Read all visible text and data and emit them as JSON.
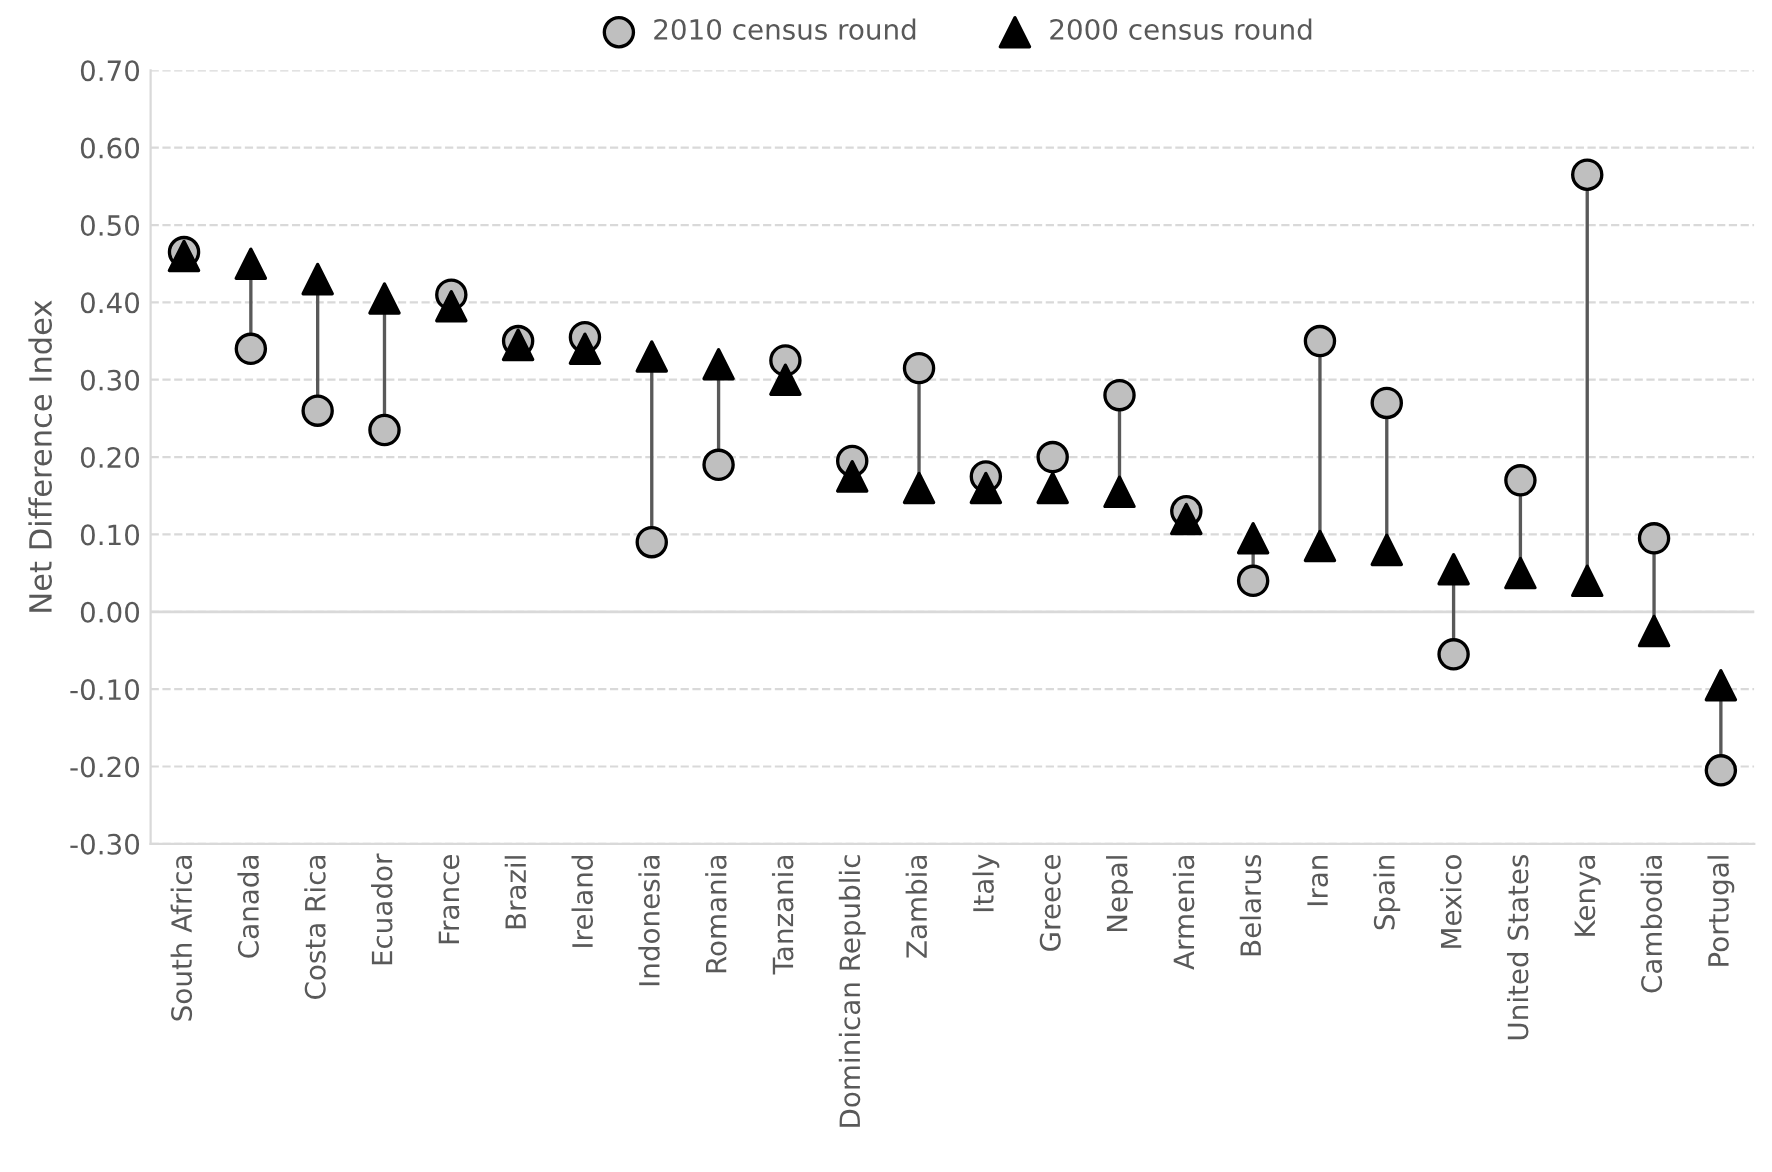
{
  "chart_data": {
    "type": "scatter",
    "ylabel": "Net Difference Index",
    "categories": [
      "South Africa",
      "Canada",
      "Costa Rica",
      "Ecuador",
      "France",
      "Brazil",
      "Ireland",
      "Indonesia",
      "Romania",
      "Tanzania",
      "Dominican Republic",
      "Zambia",
      "Italy",
      "Greece",
      "Nepal",
      "Armenia",
      "Belarus",
      "Iran",
      "Spain",
      "Mexico",
      "United States",
      "Kenya",
      "Cambodia",
      "Portugal"
    ],
    "series": [
      {
        "name": "2010 census round",
        "color": "#bfbfbf",
        "marker": "circle",
        "values": [
          0.465,
          0.34,
          0.26,
          0.235,
          0.41,
          0.35,
          0.355,
          0.09,
          0.19,
          0.325,
          0.195,
          0.315,
          0.175,
          0.2,
          0.28,
          0.13,
          0.04,
          0.35,
          0.27,
          -0.055,
          0.17,
          0.565,
          0.095,
          -0.205
        ]
      },
      {
        "name": "2000 census round",
        "color": "#000000",
        "marker": "triangle",
        "values": [
          0.46,
          0.45,
          0.43,
          0.405,
          0.395,
          0.345,
          0.34,
          0.33,
          0.32,
          0.3,
          0.175,
          0.16,
          0.16,
          0.16,
          0.155,
          0.12,
          0.095,
          0.085,
          0.08,
          0.055,
          0.05,
          0.04,
          -0.025,
          -0.095
        ]
      }
    ],
    "ylim": [
      -0.3,
      0.7
    ],
    "yticks": [
      {
        "value": -0.3,
        "label": "-0.30"
      },
      {
        "value": -0.2,
        "label": "-0.20"
      },
      {
        "value": -0.1,
        "label": "-0.10"
      },
      {
        "value": 0,
        "label": "0.00"
      },
      {
        "value": 0.1,
        "label": "0.10"
      },
      {
        "value": 0.2,
        "label": "0.20"
      },
      {
        "value": 0.3,
        "label": "0.30"
      },
      {
        "value": 0.4,
        "label": "0.40"
      },
      {
        "value": 0.5,
        "label": "0.50"
      },
      {
        "value": 0.6,
        "label": "0.60"
      },
      {
        "value": 0.7,
        "label": "0.70"
      }
    ],
    "grid": "y",
    "legend": "top"
  }
}
